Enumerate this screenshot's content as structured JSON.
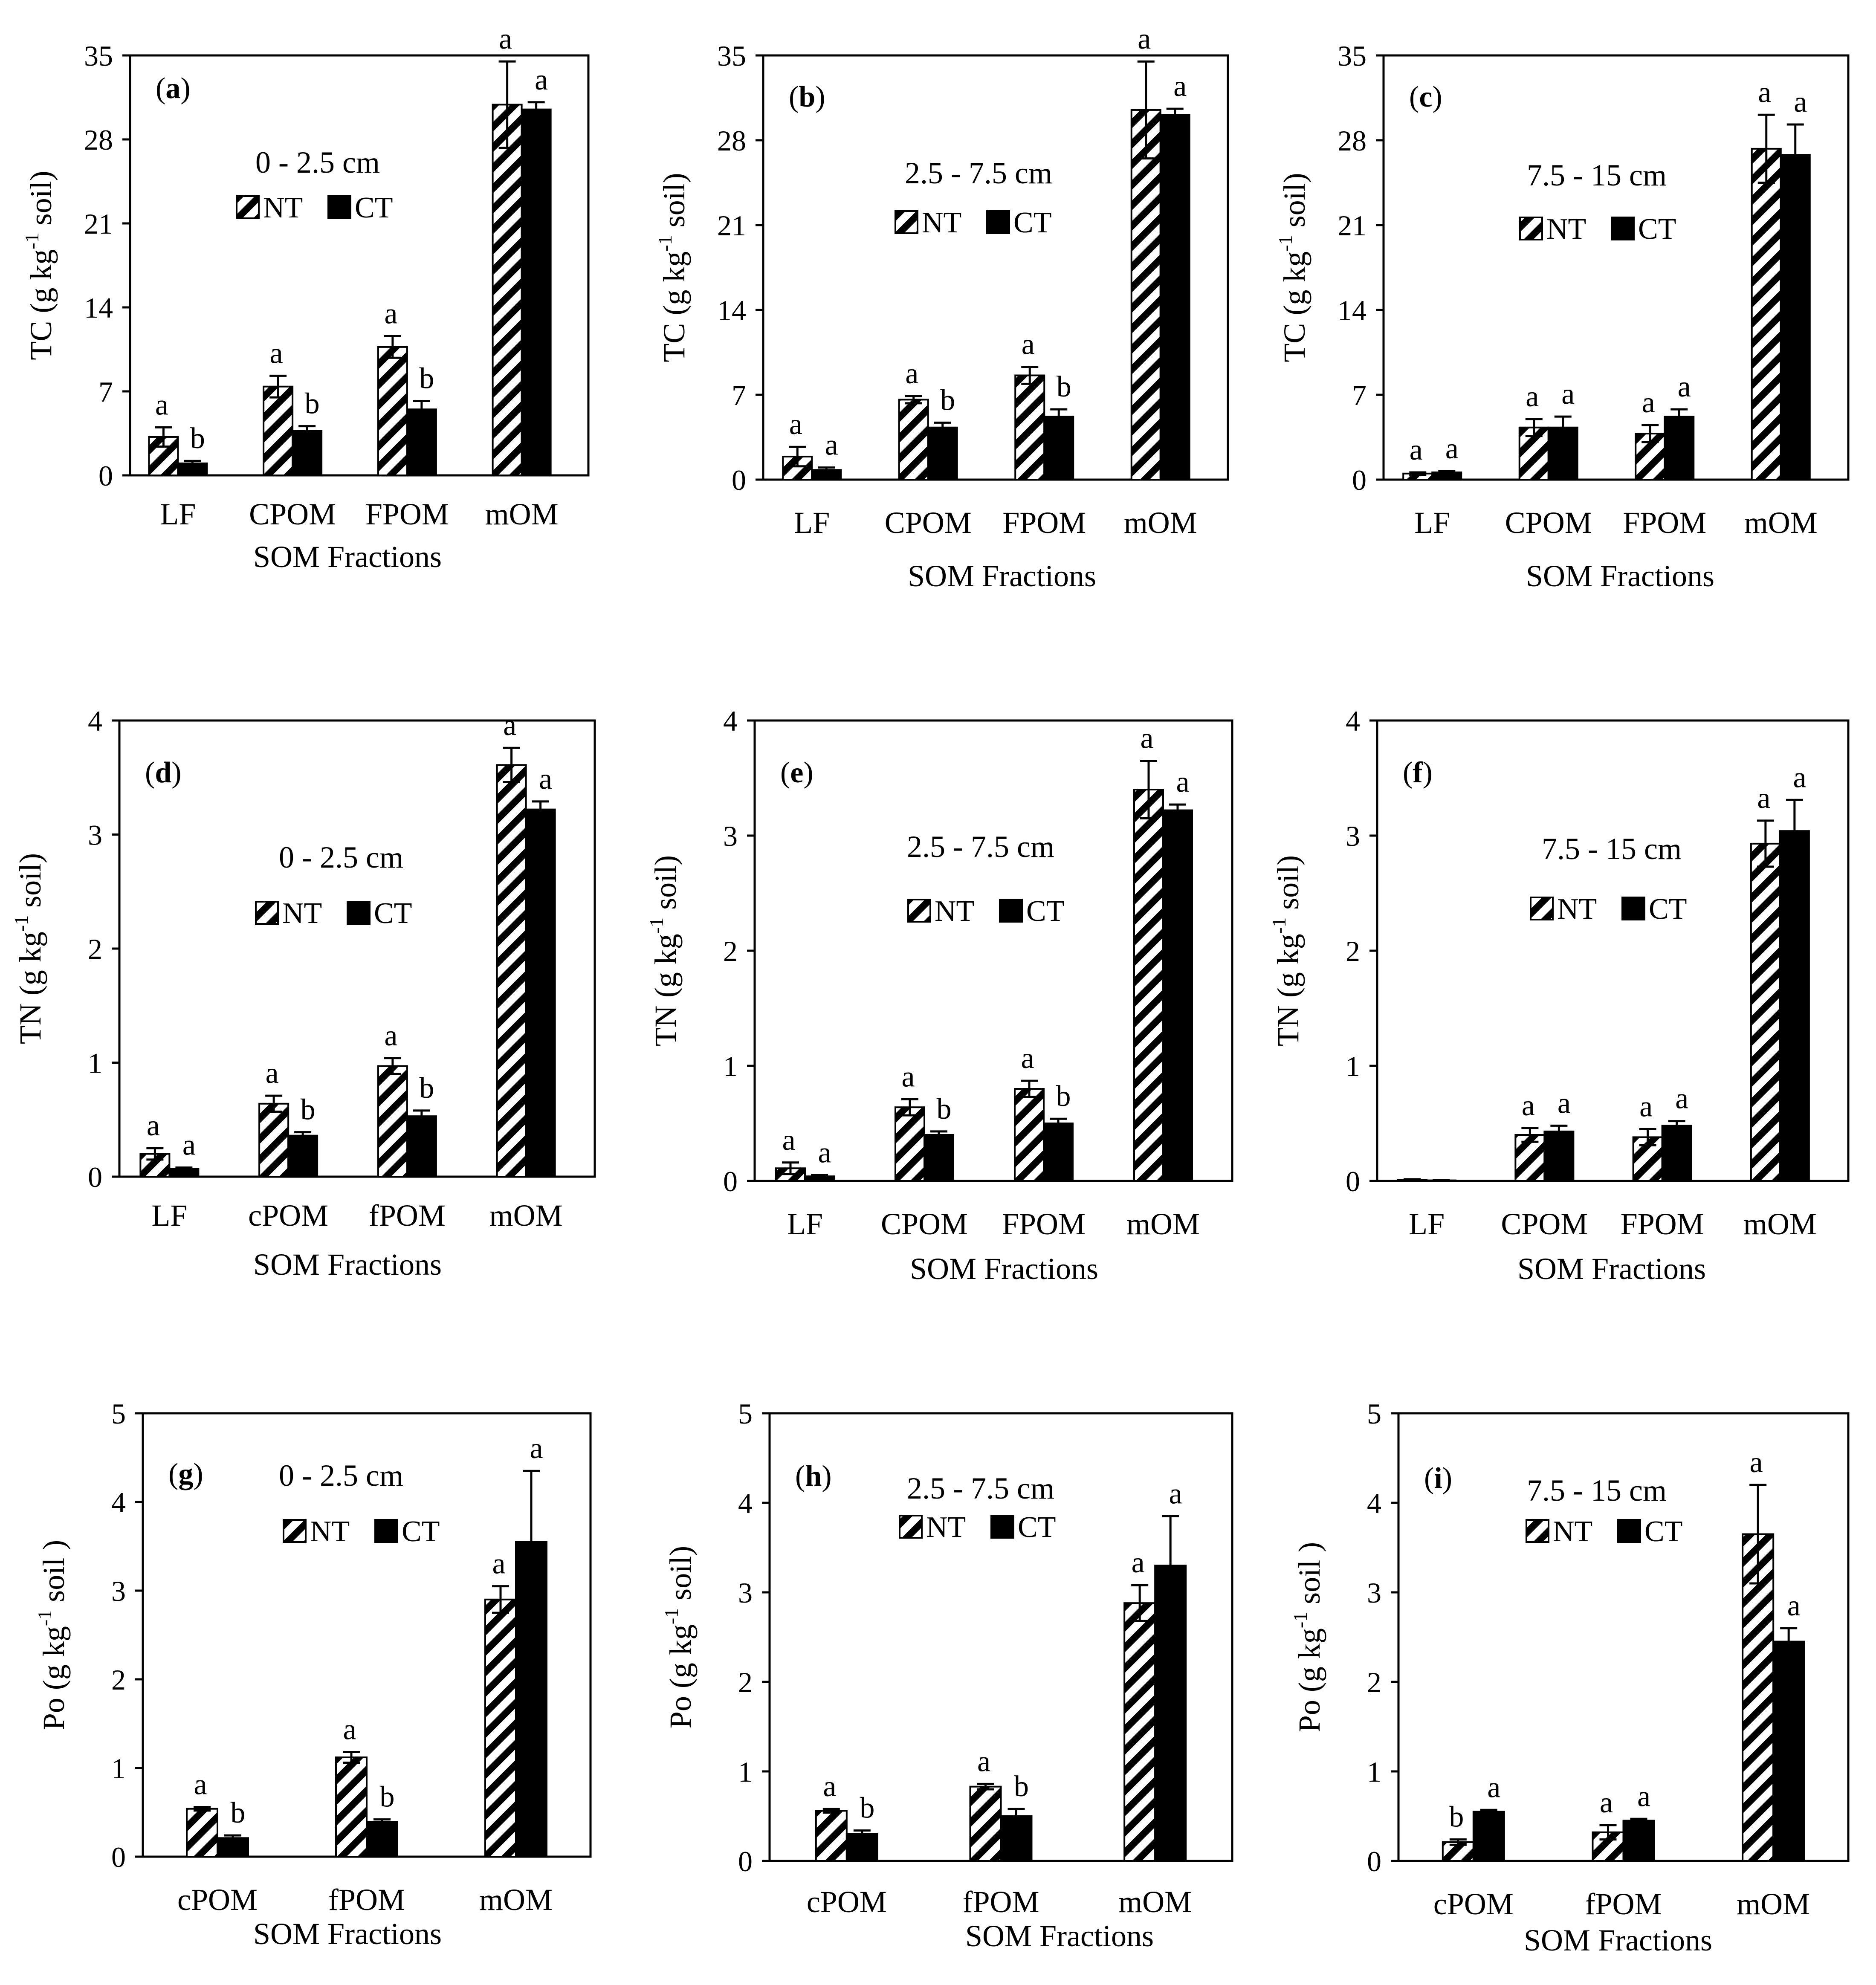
{
  "colors": {
    "nt_fill": "#ffffff",
    "nt_hatch": "#000000",
    "ct_fill": "#000000",
    "axis": "#000000"
  },
  "chart_data": [
    {
      "id": "a",
      "panel_label": "a",
      "type": "bar",
      "depth_label": "0 - 2.5 cm",
      "ylabel_pre": "TC (g kg",
      "ylabel_sup": "-1",
      "ylabel_post": " soil)",
      "xlabel": "SOM Fractions",
      "ylim": [
        0,
        35
      ],
      "yticks": [
        "0",
        "7",
        "14",
        "21",
        "28",
        "35"
      ],
      "ytick_values": [
        0,
        7,
        14,
        21,
        28,
        35
      ],
      "categories": [
        "LF",
        "CPOM",
        "FPOM",
        "mOM"
      ],
      "series": [
        {
          "name": "NT",
          "values": [
            3.2,
            7.4,
            10.7,
            30.9
          ],
          "errors": [
            0.8,
            0.9,
            0.9,
            3.6
          ],
          "letters": [
            "a",
            "a",
            "a",
            "a"
          ]
        },
        {
          "name": "CT",
          "values": [
            1.0,
            3.7,
            5.5,
            30.5
          ],
          "errors": [
            0.2,
            0.4,
            0.7,
            0.6
          ],
          "letters": [
            "b",
            "b",
            "b",
            "a"
          ]
        }
      ]
    },
    {
      "id": "b",
      "panel_label": "b",
      "type": "bar",
      "depth_label": "2.5 - 7.5 cm",
      "ylabel_pre": "TC (g kg",
      "ylabel_sup": "-1",
      "ylabel_post": " soil)",
      "xlabel": "SOM  Fractions",
      "ylim": [
        0,
        35
      ],
      "yticks": [
        "0",
        "7",
        "14",
        "21",
        "28",
        "35"
      ],
      "ytick_values": [
        0,
        7,
        14,
        21,
        28,
        35
      ],
      "categories": [
        "LF",
        "CPOM",
        "FPOM",
        "mOM"
      ],
      "series": [
        {
          "name": "NT",
          "values": [
            1.9,
            6.6,
            8.6,
            30.5
          ],
          "errors": [
            0.8,
            0.3,
            0.7,
            4.0
          ],
          "letters": [
            "a",
            "a",
            "a",
            "a"
          ]
        },
        {
          "name": "CT",
          "values": [
            0.8,
            4.3,
            5.2,
            30.1
          ],
          "errors": [
            0.2,
            0.4,
            0.6,
            0.5
          ],
          "letters": [
            "a",
            "b",
            "b",
            "a"
          ]
        }
      ]
    },
    {
      "id": "c",
      "panel_label": "c",
      "type": "bar",
      "depth_label": "7.5 - 15 cm",
      "ylabel_pre": "TC (g kg",
      "ylabel_sup": "-1",
      "ylabel_post": " soil)",
      "xlabel": "SOM  Fractions",
      "ylim": [
        0,
        35
      ],
      "yticks": [
        "0",
        "7",
        "14",
        "21",
        "28",
        "35"
      ],
      "ytick_values": [
        0,
        7,
        14,
        21,
        28,
        35
      ],
      "categories": [
        "LF",
        "CPOM",
        "FPOM",
        "mOM"
      ],
      "series": [
        {
          "name": "NT",
          "values": [
            0.5,
            4.3,
            3.8,
            27.3
          ],
          "errors": [
            0.1,
            0.7,
            0.7,
            2.8
          ],
          "letters": [
            "a",
            "a",
            "a",
            "a"
          ]
        },
        {
          "name": "CT",
          "values": [
            0.6,
            4.3,
            5.2,
            26.8
          ],
          "errors": [
            0.1,
            0.9,
            0.6,
            2.5
          ],
          "letters": [
            "a",
            "a",
            "a",
            "a"
          ]
        }
      ]
    },
    {
      "id": "d",
      "panel_label": "d",
      "type": "bar",
      "depth_label": "0 - 2.5 cm",
      "ylabel_pre": "TN (g kg",
      "ylabel_sup": "-1",
      "ylabel_post": " soil)",
      "xlabel": "SOM Fractions",
      "ylim": [
        0,
        4
      ],
      "yticks": [
        "0",
        "1",
        "2",
        "3",
        "4"
      ],
      "ytick_values": [
        0,
        1,
        2,
        3,
        4
      ],
      "categories": [
        "LF",
        "cPOM",
        "fPOM",
        "mOM"
      ],
      "series": [
        {
          "name": "NT",
          "values": [
            0.2,
            0.64,
            0.97,
            3.61
          ],
          "errors": [
            0.05,
            0.07,
            0.07,
            0.15
          ],
          "letters": [
            "a",
            "a",
            "a",
            "a"
          ]
        },
        {
          "name": "CT",
          "values": [
            0.07,
            0.36,
            0.53,
            3.22
          ],
          "errors": [
            0.01,
            0.03,
            0.05,
            0.07
          ],
          "letters": [
            "a",
            "b",
            "b",
            "a"
          ]
        }
      ]
    },
    {
      "id": "e",
      "panel_label": "e",
      "type": "bar",
      "depth_label": "2.5 - 7.5 cm",
      "ylabel_pre": "TN (g kg",
      "ylabel_sup": "-1",
      "ylabel_post": " soil)",
      "xlabel": "SOM Fractions",
      "ylim": [
        0,
        4
      ],
      "yticks": [
        "0",
        "1",
        "2",
        "3",
        "4"
      ],
      "ytick_values": [
        0,
        1,
        2,
        3,
        4
      ],
      "categories": [
        "LF",
        "CPOM",
        "FPOM",
        "mOM"
      ],
      "series": [
        {
          "name": "NT",
          "values": [
            0.11,
            0.64,
            0.8,
            3.4
          ],
          "errors": [
            0.05,
            0.07,
            0.07,
            0.25
          ],
          "letters": [
            "a",
            "a",
            "a",
            "a"
          ]
        },
        {
          "name": "CT",
          "values": [
            0.04,
            0.4,
            0.5,
            3.22
          ],
          "errors": [
            0.01,
            0.03,
            0.04,
            0.05
          ],
          "letters": [
            "a",
            "b",
            "b",
            "a"
          ]
        }
      ]
    },
    {
      "id": "f",
      "panel_label": "f",
      "type": "bar",
      "depth_label": "7.5 - 15 cm",
      "ylabel_pre": "TN (g kg",
      "ylabel_sup": "-1",
      "ylabel_post": " soil)",
      "xlabel": "SOM Fractions",
      "ylim": [
        0,
        4
      ],
      "yticks": [
        "0",
        "1",
        "2",
        "3",
        "4"
      ],
      "ytick_values": [
        0,
        1,
        2,
        3,
        4
      ],
      "categories": [
        "LF",
        "CPOM",
        "FPOM",
        "mOM"
      ],
      "series": [
        {
          "name": "NT",
          "values": [
            0.01,
            0.4,
            0.38,
            2.93
          ],
          "errors": [
            0.005,
            0.06,
            0.07,
            0.2
          ],
          "letters": [
            "",
            "a",
            "a",
            "a"
          ]
        },
        {
          "name": "CT",
          "values": [
            0.005,
            0.43,
            0.48,
            3.04
          ],
          "errors": [
            0.003,
            0.05,
            0.04,
            0.27
          ],
          "letters": [
            "",
            "a",
            "a",
            "a"
          ]
        }
      ]
    },
    {
      "id": "g",
      "panel_label": "g",
      "type": "bar",
      "depth_label": "0 - 2.5 cm",
      "ylabel_pre": "Po (g kg",
      "ylabel_sup": "-1",
      "ylabel_post": " soil )",
      "xlabel": "SOM Fractions",
      "ylim": [
        0,
        5
      ],
      "yticks": [
        "0",
        "1",
        "2",
        "3",
        "4",
        "5"
      ],
      "ytick_values": [
        0,
        1,
        2,
        3,
        4,
        5
      ],
      "categories": [
        "cPOM",
        "fPOM",
        "mOM"
      ],
      "series": [
        {
          "name": "NT",
          "values": [
            0.54,
            1.12,
            2.9
          ],
          "errors": [
            0.02,
            0.06,
            0.15
          ],
          "letters": [
            "a",
            "a",
            "a"
          ]
        },
        {
          "name": "CT",
          "values": [
            0.21,
            0.39,
            3.55
          ],
          "errors": [
            0.03,
            0.03,
            0.8
          ],
          "letters": [
            "b",
            "b",
            "a"
          ]
        }
      ]
    },
    {
      "id": "h",
      "panel_label": "h",
      "type": "bar",
      "depth_label": "2.5 - 7.5 cm",
      "ylabel_pre": "Po (g kg",
      "ylabel_sup": "-1",
      "ylabel_post": " soil)",
      "xlabel": "SOM Fractions",
      "ylim": [
        0,
        5
      ],
      "yticks": [
        "0",
        "1",
        "2",
        "3",
        "4",
        "5"
      ],
      "ytick_values": [
        0,
        1,
        2,
        3,
        4,
        5
      ],
      "categories": [
        "cPOM",
        "fPOM",
        "mOM"
      ],
      "series": [
        {
          "name": "NT",
          "values": [
            0.56,
            0.83,
            2.88
          ],
          "errors": [
            0.02,
            0.03,
            0.2
          ],
          "letters": [
            "a",
            "a",
            "a"
          ]
        },
        {
          "name": "CT",
          "values": [
            0.3,
            0.5,
            3.3
          ],
          "errors": [
            0.04,
            0.08,
            0.55
          ],
          "letters": [
            "b",
            "b",
            "a"
          ]
        }
      ]
    },
    {
      "id": "i",
      "panel_label": "i",
      "type": "bar",
      "depth_label": "7.5 - 15 cm",
      "ylabel_pre": "Po (g kg",
      "ylabel_sup": "-1",
      "ylabel_post": " soil )",
      "xlabel": "SOM Fractions",
      "ylim": [
        0,
        5
      ],
      "yticks": [
        "0",
        "1",
        "2",
        "3",
        "4",
        "5"
      ],
      "ytick_values": [
        0,
        1,
        2,
        3,
        4,
        5
      ],
      "categories": [
        "cPOM",
        "fPOM",
        "mOM"
      ],
      "series": [
        {
          "name": "NT",
          "values": [
            0.21,
            0.32,
            3.65
          ],
          "errors": [
            0.03,
            0.08,
            0.55
          ],
          "letters": [
            "b",
            "a",
            "a"
          ]
        },
        {
          "name": "CT",
          "values": [
            0.55,
            0.45,
            2.45
          ],
          "errors": [
            0.02,
            0.02,
            0.15
          ],
          "letters": [
            "a",
            "a",
            "a"
          ]
        }
      ]
    }
  ]
}
